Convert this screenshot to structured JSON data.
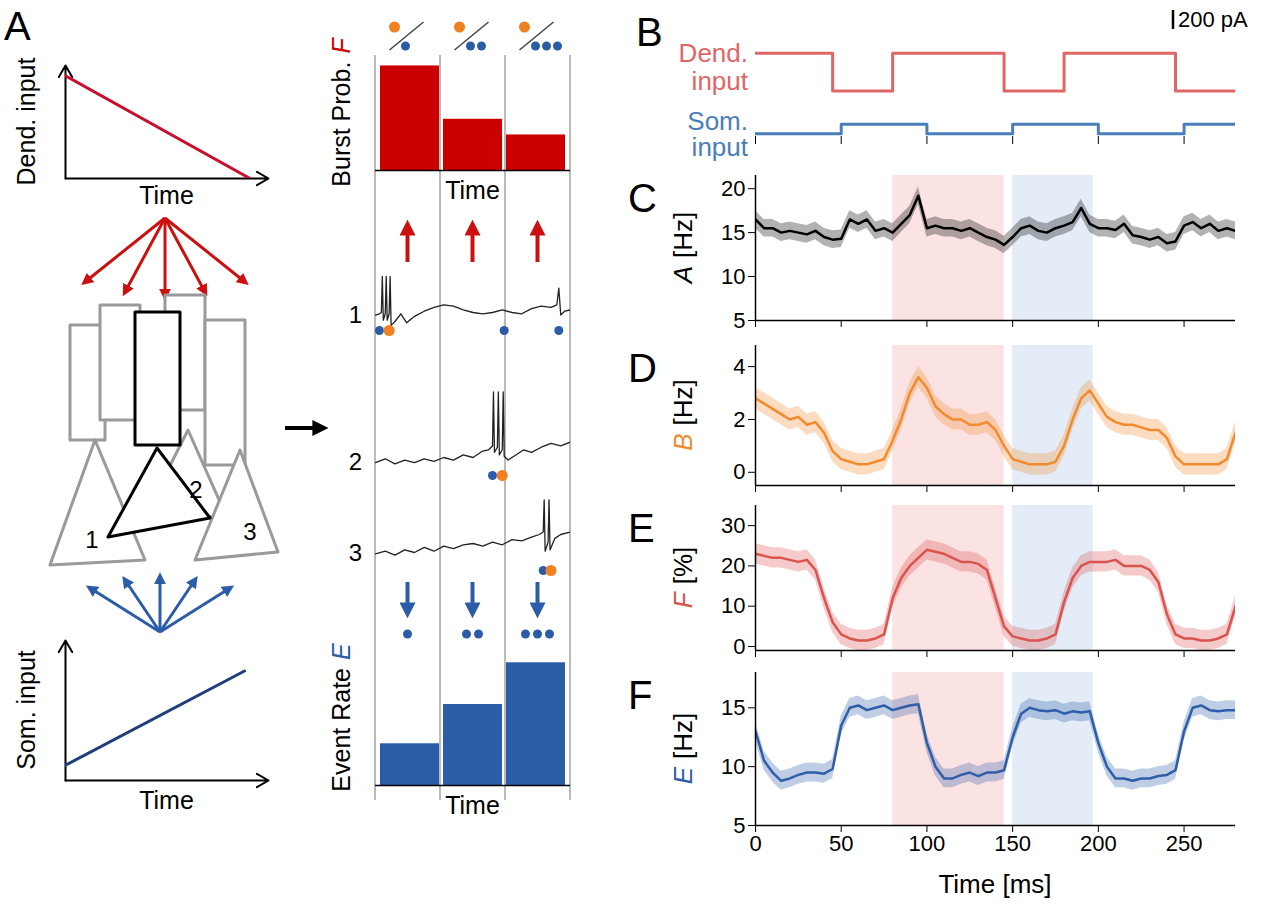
{
  "diagram": {
    "panel": "A",
    "cell_labels": [
      "1",
      "2",
      "3"
    ],
    "window_events": [
      1,
      2,
      3
    ],
    "window_bursts": [
      1,
      1,
      1
    ],
    "trace_xlim": [
      0,
      1
    ],
    "trace_ylim": [
      -1,
      6
    ],
    "traces": [
      {
        "label": "1",
        "x": [
          0.0,
          0.02,
          0.03,
          0.035,
          0.04,
          0.05,
          0.055,
          0.06,
          0.07,
          0.075,
          0.08,
          0.1,
          0.13,
          0.16,
          0.2,
          0.25,
          0.3,
          0.35,
          0.4,
          0.45,
          0.5,
          0.55,
          0.6,
          0.65,
          0.7,
          0.75,
          0.8,
          0.85,
          0.9,
          0.93,
          0.94,
          0.95,
          0.97,
          1.0
        ],
        "values": [
          0.2,
          0.3,
          0.4,
          3.2,
          -0.2,
          0.3,
          3.2,
          -0.2,
          0.3,
          3.2,
          -0.6,
          -0.3,
          0.3,
          -0.4,
          0.1,
          0.5,
          0.8,
          1.0,
          0.9,
          0.6,
          0.4,
          0.3,
          0.4,
          0.6,
          0.4,
          0.3,
          0.7,
          0.9,
          0.8,
          1.0,
          2.3,
          0.2,
          0.5,
          0.6
        ],
        "events": [
          0.02,
          0.66,
          0.94
        ],
        "bursts": [
          0.07
        ]
      },
      {
        "label": "2",
        "x": [
          0,
          0.05,
          0.1,
          0.15,
          0.2,
          0.25,
          0.3,
          0.35,
          0.4,
          0.45,
          0.5,
          0.55,
          0.58,
          0.6,
          0.605,
          0.61,
          0.625,
          0.63,
          0.635,
          0.65,
          0.655,
          0.66,
          0.68,
          0.72,
          0.76,
          0.8,
          0.85,
          0.9,
          0.95,
          1.0
        ],
        "values": [
          0.0,
          0.3,
          -0.1,
          0.2,
          0.0,
          0.3,
          0.1,
          0.4,
          0.2,
          0.6,
          0.4,
          0.9,
          1.0,
          1.3,
          5.5,
          0.8,
          1.2,
          5.5,
          0.6,
          1.0,
          5.5,
          0.5,
          0.2,
          0.6,
          1.0,
          0.8,
          1.2,
          1.5,
          1.3,
          1.6
        ],
        "events": [
          0.6
        ],
        "bursts": [
          0.65
        ]
      },
      {
        "label": "3",
        "x": [
          0,
          0.05,
          0.1,
          0.15,
          0.2,
          0.25,
          0.3,
          0.35,
          0.4,
          0.45,
          0.5,
          0.55,
          0.6,
          0.65,
          0.7,
          0.75,
          0.8,
          0.84,
          0.86,
          0.865,
          0.87,
          0.885,
          0.89,
          0.895,
          0.92,
          0.95,
          1.0
        ],
        "values": [
          0.3,
          0.5,
          0.2,
          0.6,
          0.4,
          0.8,
          0.5,
          0.9,
          0.7,
          1.0,
          1.1,
          0.9,
          1.2,
          1.0,
          1.4,
          1.3,
          1.6,
          1.8,
          2.0,
          4.5,
          0.5,
          1.2,
          4.5,
          0.6,
          1.5,
          1.8,
          2.0
        ],
        "events": [
          0.86
        ],
        "bursts": [
          0.9
        ]
      }
    ]
  },
  "chart_data": [
    {
      "type": "line",
      "ylabel": "Dend. input",
      "xlabel": "Time",
      "x": [
        0,
        1
      ],
      "values": [
        1,
        0
      ],
      "color": "#c8102e",
      "xlim": [
        0,
        1.1
      ],
      "ylim": [
        0,
        1.1
      ],
      "tick_labels": false
    },
    {
      "type": "line",
      "ylabel": "Som. input",
      "xlabel": "Time",
      "x": [
        0,
        0.97
      ],
      "values": [
        0.12,
        0.86
      ],
      "color": "#1f3f7a",
      "xlim": [
        0,
        1.1
      ],
      "ylim": [
        0,
        1.1
      ],
      "tick_labels": false
    },
    {
      "type": "bar",
      "ylabel": "Burst Prob.",
      "symbol": "F",
      "xlabel": "Time",
      "categories": [
        null,
        null,
        null
      ],
      "values": [
        1.0,
        0.49,
        0.34
      ],
      "color": "#cc0000",
      "ylim": [
        0,
        1.1
      ],
      "tick_labels": false
    },
    {
      "type": "bar",
      "ylabel": "Event Rate",
      "symbol": "E",
      "xlabel": "Time",
      "categories": [
        null,
        null,
        null
      ],
      "values": [
        0.34,
        0.66,
        1.0
      ],
      "color": "#2b5ca8",
      "ylim": [
        0,
        1.1
      ],
      "tick_labels": false
    },
    {
      "panel": "B",
      "type": "line",
      "line_style": "step",
      "xlim": [
        0,
        280
      ],
      "xticks": [
        0,
        50,
        100,
        150,
        200,
        250
      ],
      "tick_labels": false,
      "scale_bar": {
        "value": 200,
        "label": "200 pA"
      },
      "series": [
        {
          "name": "Dend. input",
          "color": "#e06666",
          "x": [
            0,
            45,
            80,
            145,
            180,
            245,
            280
          ],
          "values": [
            400,
            0,
            400,
            0,
            400,
            0,
            0
          ],
          "ylim": [
            -100,
            850
          ]
        },
        {
          "name": "Som. input",
          "color": "#4a7ebb",
          "x": [
            0,
            50,
            100,
            150,
            200,
            250,
            280
          ],
          "values": [
            0,
            100,
            0,
            100,
            0,
            100,
            100
          ],
          "ylim": [
            -30,
            140
          ]
        }
      ]
    },
    {
      "panel": "C",
      "type": "line",
      "ylabel": "[Hz]",
      "symbol": "A",
      "color": "#000000",
      "error": 1.0,
      "x": [
        0,
        5,
        10,
        15,
        20,
        25,
        30,
        35,
        40,
        45,
        50,
        55,
        60,
        65,
        70,
        75,
        80,
        85,
        90,
        95,
        100,
        105,
        110,
        115,
        120,
        125,
        130,
        135,
        140,
        145,
        150,
        155,
        160,
        165,
        170,
        175,
        180,
        185,
        190,
        195,
        200,
        205,
        210,
        215,
        220,
        225,
        230,
        235,
        240,
        245,
        250,
        255,
        260,
        265,
        270,
        275,
        280
      ],
      "values": [
        16.5,
        15.5,
        15.5,
        15,
        15.2,
        15,
        14.8,
        15.2,
        14.5,
        14.2,
        14.3,
        16.5,
        16,
        16.5,
        15.2,
        15.5,
        15,
        16,
        17,
        19.2,
        15.5,
        15.8,
        15.5,
        15.5,
        15.2,
        15.5,
        15,
        14.5,
        14.2,
        13.6,
        14.5,
        15.5,
        15.8,
        15.2,
        15,
        15.5,
        15.8,
        16.2,
        17.8,
        16,
        15.5,
        15.5,
        15.3,
        16,
        14.7,
        14.5,
        14.2,
        14.5,
        13.8,
        14,
        15.8,
        16.2,
        15.5,
        16,
        15.2,
        15.5,
        15.2
      ],
      "xlim": [
        0,
        280
      ],
      "xticks": [
        0,
        50,
        100,
        150,
        200,
        250
      ],
      "ylim": [
        5,
        21.5
      ],
      "yticks": [
        5,
        10,
        15,
        20
      ],
      "tick_labels": "y",
      "shading": [
        {
          "x": [
            80,
            145
          ],
          "color": "#fbe3e3"
        },
        {
          "x": [
            150,
            197
          ],
          "color": "#e3ecf7"
        }
      ]
    },
    {
      "panel": "D",
      "type": "line",
      "ylabel": "[Hz]",
      "symbol": "B",
      "color": "#f28a2e",
      "error": 0.4,
      "x": [
        0,
        5,
        10,
        15,
        20,
        25,
        30,
        35,
        40,
        45,
        50,
        55,
        60,
        65,
        70,
        75,
        80,
        85,
        90,
        95,
        100,
        105,
        110,
        115,
        120,
        125,
        130,
        135,
        140,
        145,
        150,
        155,
        160,
        165,
        170,
        175,
        180,
        185,
        190,
        195,
        200,
        205,
        210,
        215,
        220,
        225,
        230,
        235,
        240,
        245,
        250,
        255,
        260,
        265,
        270,
        275,
        280
      ],
      "values": [
        2.8,
        2.6,
        2.4,
        2.2,
        2.0,
        2.1,
        1.8,
        1.9,
        1.5,
        0.8,
        0.5,
        0.4,
        0.3,
        0.3,
        0.4,
        0.5,
        1.2,
        2.0,
        3.0,
        3.6,
        3.2,
        2.5,
        2.2,
        2.0,
        2.0,
        1.8,
        1.8,
        1.9,
        1.6,
        1.0,
        0.5,
        0.4,
        0.3,
        0.3,
        0.3,
        0.4,
        1.0,
        2.0,
        2.8,
        3.1,
        2.6,
        2.1,
        1.9,
        1.8,
        1.8,
        1.7,
        1.6,
        1.6,
        1.3,
        0.6,
        0.3,
        0.3,
        0.3,
        0.3,
        0.3,
        0.5,
        1.5
      ],
      "xlim": [
        0,
        280
      ],
      "xticks": [
        0,
        50,
        100,
        150,
        200,
        250
      ],
      "ylim": [
        -0.5,
        4.8
      ],
      "yticks": [
        0,
        2,
        4
      ],
      "tick_labels": "y",
      "shading": [
        {
          "x": [
            80,
            145
          ],
          "color": "#fbe3e3"
        },
        {
          "x": [
            150,
            197
          ],
          "color": "#e3ecf7"
        }
      ]
    },
    {
      "panel": "E",
      "type": "line",
      "ylabel": "[%]",
      "symbol": "F",
      "color": "#d9534f",
      "error": 2.5,
      "x": [
        0,
        5,
        10,
        15,
        20,
        25,
        30,
        35,
        40,
        45,
        50,
        55,
        60,
        65,
        70,
        75,
        80,
        85,
        90,
        95,
        100,
        105,
        110,
        115,
        120,
        125,
        130,
        135,
        140,
        145,
        150,
        155,
        160,
        165,
        170,
        175,
        180,
        185,
        190,
        195,
        200,
        205,
        210,
        215,
        220,
        225,
        230,
        235,
        240,
        245,
        250,
        255,
        260,
        265,
        270,
        275,
        280
      ],
      "values": [
        23,
        22.5,
        22,
        22,
        21.5,
        21,
        21.5,
        19,
        12,
        6,
        3,
        2,
        1.5,
        1.5,
        2,
        3,
        12,
        17,
        20,
        22,
        24,
        23.5,
        23,
        22,
        21,
        21,
        20.5,
        19,
        12,
        5,
        2.5,
        2,
        1.5,
        1.5,
        2,
        3,
        11,
        17,
        20,
        21,
        21,
        21,
        21.5,
        20,
        20,
        20,
        19,
        16,
        8,
        3,
        2,
        2,
        1.5,
        1.5,
        2,
        3,
        10
      ],
      "xlim": [
        0,
        280
      ],
      "xticks": [
        0,
        50,
        100,
        150,
        200,
        250
      ],
      "ylim": [
        -1,
        35
      ],
      "yticks": [
        0,
        10,
        20,
        30
      ],
      "tick_labels": "y",
      "shading": [
        {
          "x": [
            80,
            145
          ],
          "color": "#fbe3e3"
        },
        {
          "x": [
            150,
            197
          ],
          "color": "#e3ecf7"
        }
      ]
    },
    {
      "panel": "F",
      "type": "line",
      "ylabel": "[Hz]",
      "symbol": "E",
      "xlabel": "Time [ms]",
      "color": "#2f5ea8",
      "error": 0.8,
      "x": [
        0,
        5,
        10,
        15,
        20,
        25,
        30,
        35,
        40,
        45,
        50,
        55,
        60,
        65,
        70,
        75,
        80,
        85,
        90,
        95,
        100,
        105,
        110,
        115,
        120,
        125,
        130,
        135,
        140,
        145,
        150,
        155,
        160,
        165,
        170,
        175,
        180,
        185,
        190,
        195,
        200,
        205,
        210,
        215,
        220,
        225,
        230,
        235,
        240,
        245,
        250,
        255,
        260,
        265,
        270,
        275,
        280
      ],
      "values": [
        13,
        10.5,
        9.5,
        8.8,
        9,
        9.3,
        9.5,
        9.5,
        9.4,
        9.8,
        13.5,
        15,
        15.2,
        14.8,
        15,
        15.2,
        14.8,
        15,
        15.2,
        15.3,
        12,
        10,
        9,
        9,
        9.3,
        9.5,
        9.2,
        9.5,
        9.5,
        9.7,
        12.5,
        14.5,
        15,
        14.8,
        14.7,
        14.8,
        14.5,
        14.7,
        14.6,
        14.7,
        12,
        10,
        9,
        9,
        8.8,
        9,
        9,
        9.2,
        9.3,
        9.7,
        13,
        15,
        15.2,
        14.8,
        14.7,
        14.8,
        14.8
      ],
      "xlim": [
        0,
        280
      ],
      "xticks": [
        0,
        50,
        100,
        150,
        200,
        250
      ],
      "ylim": [
        5,
        18
      ],
      "yticks": [
        5,
        10,
        15
      ],
      "tick_labels": true,
      "shading": [
        {
          "x": [
            80,
            145
          ],
          "color": "#fbe3e3"
        },
        {
          "x": [
            150,
            197
          ],
          "color": "#e3ecf7"
        }
      ]
    }
  ]
}
